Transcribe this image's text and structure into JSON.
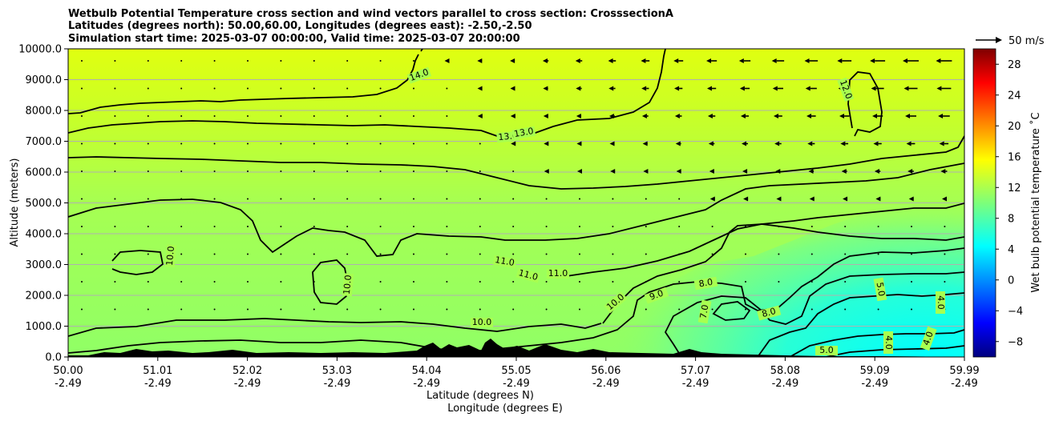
{
  "chart_data": {
    "type": "contour",
    "title_lines": [
      "Wetbulb Potential Temperature cross section and wind vectors parallel to cross section: CrosssectionA",
      "Latitudes (degrees north): 50.00,60.00, Longitudes (degrees east): -2.50,-2.50",
      "Simulation start time: 2025-03-07 00:00:00, Valid time: 2025-03-07 20:00:00"
    ],
    "xlabel": "Latitude (degrees N)",
    "xlabel2": "Longitude (degrees E)",
    "ylabel": "Altitude (meters)",
    "x_ticks": [
      {
        "lat": "50.00",
        "lon": "-2.49"
      },
      {
        "lat": "51.01",
        "lon": "-2.49"
      },
      {
        "lat": "52.02",
        "lon": "-2.49"
      },
      {
        "lat": "53.03",
        "lon": "-2.49"
      },
      {
        "lat": "54.04",
        "lon": "-2.49"
      },
      {
        "lat": "55.05",
        "lon": "-2.49"
      },
      {
        "lat": "56.06",
        "lon": "-2.49"
      },
      {
        "lat": "57.07",
        "lon": "-2.49"
      },
      {
        "lat": "58.08",
        "lon": "-2.49"
      },
      {
        "lat": "59.09",
        "lon": "-2.49"
      },
      {
        "lat": "59.99",
        "lon": "-2.49"
      }
    ],
    "y_ticks": [
      "0.0",
      "1000.0",
      "2000.0",
      "3000.0",
      "4000.0",
      "5000.0",
      "6000.0",
      "7000.0",
      "8000.0",
      "9000.0",
      "10000.0"
    ],
    "ylim": [
      0,
      10000
    ],
    "grid": "horizontal",
    "colorbar": {
      "label": "Wet bulb potential temperature ˚C",
      "ticks": [
        "−8",
        "−4",
        "0",
        "4",
        "8",
        "12",
        "16",
        "20",
        "24",
        "28"
      ],
      "range": [
        -10,
        30
      ],
      "colormap": "jet"
    },
    "quiver_key": "50 m/s",
    "contour_labels": [
      {
        "text": "14.0"
      },
      {
        "text": "13.0"
      },
      {
        "text": "13.0"
      },
      {
        "text": "12.0"
      },
      {
        "text": "11.0"
      },
      {
        "text": "11.0"
      },
      {
        "text": "11.0"
      },
      {
        "text": "10.0"
      },
      {
        "text": "10.0"
      },
      {
        "text": "10.0"
      },
      {
        "text": "10.0"
      },
      {
        "text": "9.0"
      },
      {
        "text": "8.0"
      },
      {
        "text": "8.0"
      },
      {
        "text": "7.0"
      },
      {
        "text": "5.0"
      },
      {
        "text": "4.0"
      },
      {
        "text": "4.0"
      },
      {
        "text": "4.0"
      },
      {
        "text": "5.0"
      }
    ]
  }
}
